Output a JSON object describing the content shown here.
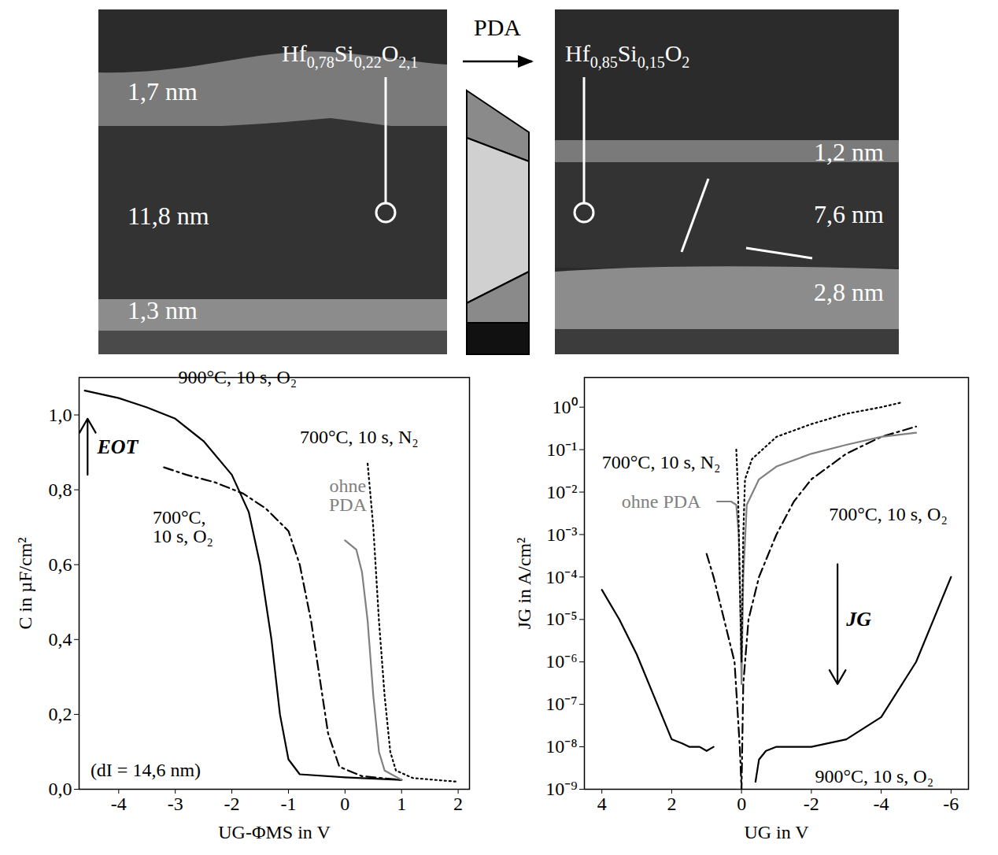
{
  "arrow_label": "PDA",
  "tem_panels": [
    {
      "formula": "Hf0,78Si0,22O2,1",
      "layers": [
        "1,7 nm",
        "11,8 nm",
        "1,3 nm"
      ]
    },
    {
      "formula": "Hf0,85Si0,15O2",
      "layers": [
        "1,2 nm",
        "7,6 nm",
        "2,8 nm"
      ]
    }
  ],
  "chart_data": [
    {
      "type": "line",
      "x_label": "UG-ΦMS in V",
      "y_label": "C in µF/cm²",
      "xlim": [
        -4.7,
        2.2
      ],
      "xticks": [
        -4,
        -3,
        -2,
        -1,
        0,
        1,
        2
      ],
      "ylim": [
        0,
        1.1
      ],
      "yticks": [
        {
          "value": 0,
          "label": "0,0"
        },
        {
          "value": 0.2,
          "label": "0,2"
        },
        {
          "value": 0.4,
          "label": "0,4"
        },
        {
          "value": 0.6,
          "label": "0,6"
        },
        {
          "value": 0.8,
          "label": "0,8"
        },
        {
          "value": 1.0,
          "label": "1,0"
        }
      ],
      "grid": false,
      "annotations": [
        {
          "text": "EOT"
        },
        {
          "text": "(dI = 14,6 nm)"
        }
      ],
      "series": [
        {
          "name": "900°C, 10 s, O₂",
          "color": "#000000",
          "line_style": "solid",
          "x": [
            -4.6,
            -4,
            -3.5,
            -3,
            -2.5,
            -2,
            -1.7,
            -1.5,
            -1.3,
            -1.15,
            -1,
            -0.8,
            0,
            1
          ],
          "values": [
            1.065,
            1.045,
            1.02,
            0.99,
            0.93,
            0.84,
            0.74,
            0.6,
            0.4,
            0.2,
            0.08,
            0.04,
            0.032,
            0.025
          ]
        },
        {
          "name": "700°C, 10 s, O₂",
          "color": "#000000",
          "line_style": "dash-dot",
          "x": [
            -3.2,
            -2.8,
            -2.3,
            -1.8,
            -1.4,
            -1,
            -0.8,
            -0.6,
            -0.45,
            -0.3,
            -0.1,
            0.3,
            1
          ],
          "values": [
            0.86,
            0.84,
            0.82,
            0.79,
            0.75,
            0.69,
            0.6,
            0.45,
            0.3,
            0.15,
            0.06,
            0.035,
            0.025
          ]
        },
        {
          "name": "ohne PDA",
          "color": "#808080",
          "line_style": "solid",
          "x": [
            0,
            0.2,
            0.3,
            0.4,
            0.5,
            0.6,
            0.7,
            1
          ],
          "values": [
            0.665,
            0.64,
            0.58,
            0.45,
            0.25,
            0.1,
            0.05,
            0.025
          ]
        },
        {
          "name": "700°C, 10 s, N₂",
          "color": "#000000",
          "line_style": "dotted",
          "x": [
            0.4,
            0.5,
            0.6,
            0.7,
            0.8,
            0.9,
            1.2,
            2
          ],
          "values": [
            0.87,
            0.7,
            0.45,
            0.25,
            0.1,
            0.05,
            0.03,
            0.02
          ]
        }
      ]
    },
    {
      "type": "line",
      "log": "y",
      "x_label": "UG in V",
      "y_label": "JG in A/cm²",
      "xlim": [
        4.5,
        -6.5
      ],
      "xticks": [
        4,
        2,
        0,
        -2,
        -4,
        -6
      ],
      "ylim": [
        1e-09,
        5
      ],
      "yticks": [
        {
          "value": 1e-09,
          "label": "10⁻⁹"
        },
        {
          "value": 1e-08,
          "label": "10⁻⁸"
        },
        {
          "value": 1e-07,
          "label": "10⁻⁷"
        },
        {
          "value": 1e-06,
          "label": "10⁻⁶"
        },
        {
          "value": 1e-05,
          "label": "10⁻⁵"
        },
        {
          "value": 0.0001,
          "label": "10⁻⁴"
        },
        {
          "value": 0.001,
          "label": "10⁻³"
        },
        {
          "value": 0.01,
          "label": "10⁻²"
        },
        {
          "value": 0.1,
          "label": "10⁻¹"
        },
        {
          "value": 1,
          "label": "10⁰"
        }
      ],
      "grid": false,
      "annotations": [
        {
          "text": "JG"
        }
      ],
      "series": [
        {
          "name": "900°C, 10 s, O₂",
          "color": "#000000",
          "line_style": "solid",
          "x": [
            4,
            3.5,
            3,
            2.5,
            2,
            1.7,
            1.5,
            1.2,
            1,
            0.8,
            0.3,
            -0.4,
            -0.5,
            -0.7,
            -1,
            -2,
            -3,
            -4,
            -5,
            -5.5,
            -6
          ],
          "values": [
            5e-05,
            1e-05,
            1.5e-06,
            1.5e-07,
            1.5e-08,
            1.2e-08,
            1e-08,
            1e-08,
            8e-09,
            1e-08,
            null,
            1.5e-09,
            5e-09,
            8e-09,
            1e-08,
            1e-08,
            1.5e-08,
            5e-08,
            1e-06,
            1e-05,
            0.0001
          ]
        },
        {
          "name": "700°C, 10 s, O₂",
          "color": "#000000",
          "line_style": "dash-dot",
          "x": [
            1,
            0.8,
            0.5,
            0.2,
            0.05,
            0,
            -0.05,
            -0.2,
            -0.5,
            -1,
            -1.5,
            -2,
            -3,
            -4,
            -5
          ],
          "values": [
            0.00035,
            0.0001,
            1e-05,
            1e-06,
            1e-08,
            1e-09,
            3e-07,
            1e-05,
            0.0001,
            0.001,
            0.006,
            0.02,
            0.08,
            0.2,
            0.35
          ]
        },
        {
          "name": "ohne PDA",
          "color": "#808080",
          "line_style": "solid",
          "x": [
            0.7,
            0.3,
            0.15,
            0.08,
            0.03,
            0,
            -0.05,
            -0.15,
            -0.5,
            -1,
            -2,
            -3,
            -4,
            -5
          ],
          "values": [
            0.006,
            0.006,
            0.005,
            0.001,
            1e-05,
            3e-07,
            0.0001,
            0.005,
            0.02,
            0.04,
            0.08,
            0.13,
            0.2,
            0.25
          ]
        },
        {
          "name": "700°C, 10 s, N₂",
          "color": "#000000",
          "line_style": "dotted",
          "x": [
            0.15,
            0.1,
            0.05,
            0,
            -0.05,
            -0.1,
            -0.3,
            -1,
            -2,
            -3,
            -4,
            -4.6
          ],
          "values": [
            0.1,
            0.01,
            0.0001,
            1e-06,
            0.001,
            0.02,
            0.06,
            0.2,
            0.4,
            0.7,
            1.0,
            1.3
          ]
        }
      ]
    }
  ]
}
